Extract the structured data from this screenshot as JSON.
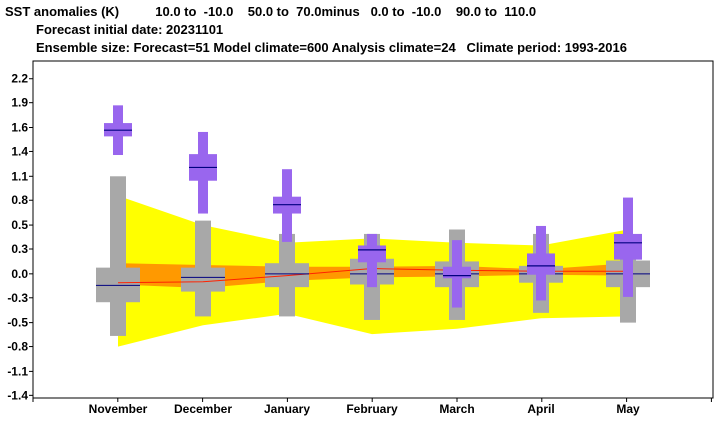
{
  "header": {
    "line1": "SST anomalies (K)          10.0 to  -10.0    50.0 to  70.0minus   0.0 to  -10.0    90.0 to  110.0",
    "line2": "Forecast initial date: 20231101",
    "line3": "Ensemble size: Forecast=51 Model climate=600 Analysis climate=24   Climate period: 1993-2016"
  },
  "chart_data": {
    "type": "box",
    "title": "SST anomalies (K)",
    "categories": [
      "November",
      "December",
      "January",
      "February",
      "March",
      "April",
      "May"
    ],
    "ylim": [
      -1.4,
      2.4
    ],
    "yticks": [
      "2.2",
      "1.9",
      "1.6",
      "1.4",
      "1.1",
      "0.8",
      "0.5",
      "0.3",
      "0.0",
      "-0.3",
      "-0.5",
      "-0.8",
      "-1.1",
      "-1.4"
    ],
    "ytick_values": [
      2.2,
      1.93,
      1.65,
      1.38,
      1.1,
      0.83,
      0.55,
      0.28,
      0.0,
      -0.27,
      -0.55,
      -0.82,
      -1.1,
      -1.37
    ],
    "colors": {
      "analysis_band": "#ffff00",
      "analysis_inner": "#ff9900",
      "median_line": "#ff2200",
      "model_climate": "#a8a8a8",
      "forecast": "#9966ee",
      "forecast_median": "#000080"
    },
    "analysis_climate_outer": {
      "lower": [
        -0.82,
        -0.58,
        -0.45,
        -0.68,
        -0.62,
        -0.5,
        -0.48
      ],
      "upper": [
        0.88,
        0.55,
        0.35,
        0.4,
        0.35,
        0.32,
        0.5
      ]
    },
    "analysis_climate_inner": {
      "lower": [
        -0.12,
        -0.16,
        -0.08,
        -0.04,
        -0.03,
        -0.01,
        -0.02
      ],
      "upper": [
        0.12,
        0.1,
        0.08,
        0.08,
        0.09,
        0.05,
        0.12
      ]
    },
    "analysis_median": [
      -0.1,
      -0.09,
      -0.02,
      0.06,
      0.04,
      0.03,
      0.03
    ],
    "model_climate": {
      "whisker_low": [
        -0.7,
        -0.48,
        -0.48,
        -0.52,
        -0.52,
        -0.44,
        -0.55
      ],
      "box_low": [
        -0.32,
        -0.2,
        -0.15,
        -0.12,
        -0.15,
        -0.1,
        -0.15
      ],
      "median": [
        -0.13,
        -0.04,
        0.0,
        0.0,
        0.0,
        0.0,
        0.0
      ],
      "box_high": [
        0.07,
        0.07,
        0.12,
        0.17,
        0.14,
        0.09,
        0.15
      ],
      "whisker_high": [
        1.1,
        0.6,
        0.45,
        0.45,
        0.5,
        0.45,
        0.43
      ]
    },
    "forecast": {
      "whisker_low": [
        1.34,
        0.68,
        0.36,
        -0.15,
        -0.38,
        -0.3,
        -0.26
      ],
      "box_low": [
        1.55,
        1.05,
        0.68,
        0.13,
        -0.05,
        -0.01,
        0.16
      ],
      "median": [
        1.62,
        1.2,
        0.78,
        0.27,
        -0.02,
        0.09,
        0.35
      ],
      "box_high": [
        1.7,
        1.35,
        0.87,
        0.32,
        0.08,
        0.23,
        0.45
      ],
      "whisker_high": [
        1.9,
        1.6,
        1.18,
        0.45,
        0.38,
        0.54,
        0.86
      ]
    }
  }
}
